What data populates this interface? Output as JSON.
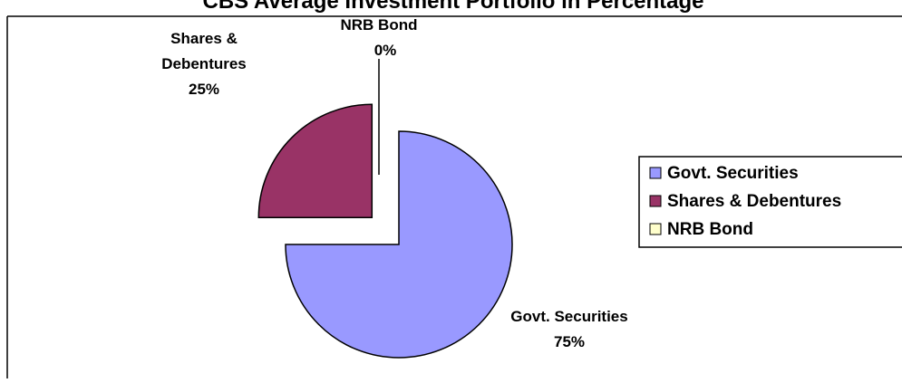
{
  "chart_data": {
    "type": "pie",
    "title": "CBS Average Investment Portfolio in Percentage",
    "exploded": true,
    "categories": [
      "Govt. Securities",
      "Shares & Debentures",
      "NRB Bond"
    ],
    "values": [
      75,
      25,
      0
    ],
    "value_labels": [
      "75%",
      "25%",
      "0%"
    ],
    "colors": [
      "#9999FF",
      "#993366",
      "#FFFFCC"
    ],
    "legend": {
      "position": "right",
      "entries": [
        "Govt. Securities",
        "Shares & Debentures",
        "NRB Bond"
      ]
    },
    "data_labels": [
      {
        "name_lines": [
          "Govt. Securities"
        ],
        "value": "75%"
      },
      {
        "name_lines": [
          "Shares &",
          "Debentures"
        ],
        "value": "25%"
      },
      {
        "name_lines": [
          "NRB Bond"
        ],
        "value": "0%"
      }
    ]
  }
}
